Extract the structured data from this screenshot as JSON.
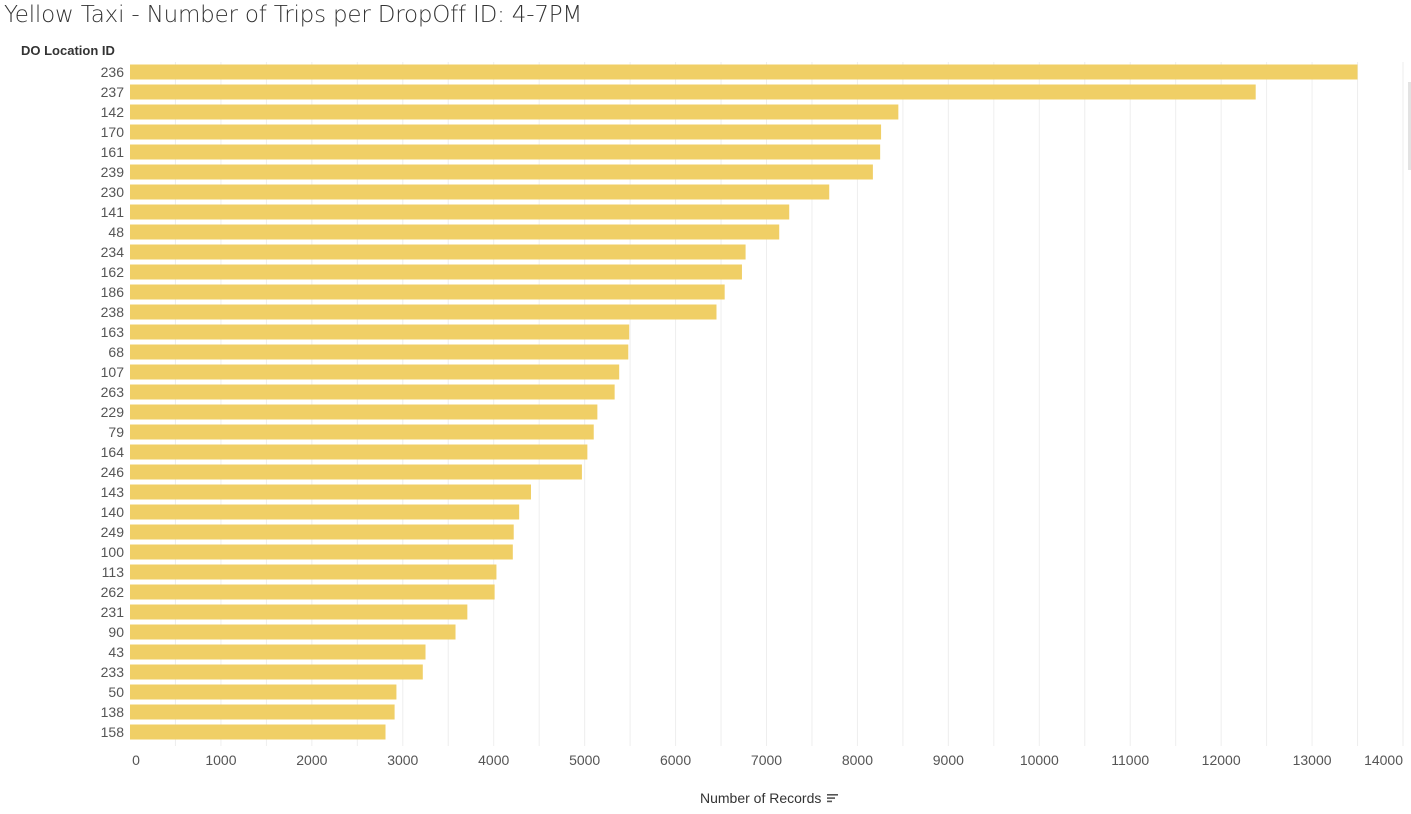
{
  "title": "Yellow Taxi - Number of Trips per DropOff ID: 4-7PM",
  "chart_data": {
    "type": "bar",
    "orientation": "horizontal",
    "title": "Yellow Taxi - Number of Trips per DropOff ID: 4-7PM",
    "ylabel": "DO Location ID",
    "xlabel": "Number of Records",
    "categories": [
      "236",
      "237",
      "142",
      "170",
      "161",
      "239",
      "230",
      "141",
      "48",
      "234",
      "162",
      "186",
      "238",
      "163",
      "68",
      "107",
      "263",
      "229",
      "79",
      "164",
      "246",
      "143",
      "140",
      "249",
      "100",
      "113",
      "262",
      "231",
      "90",
      "43",
      "233",
      "50",
      "138",
      "158"
    ],
    "values": [
      13500,
      12380,
      8450,
      8260,
      8250,
      8170,
      7690,
      7250,
      7140,
      6770,
      6730,
      6540,
      6450,
      5490,
      5480,
      5380,
      5330,
      5140,
      5100,
      5030,
      4970,
      4410,
      4280,
      4220,
      4210,
      4030,
      4010,
      3710,
      3580,
      3250,
      3220,
      2930,
      2910,
      2810
    ],
    "xlim": [
      0,
      14000
    ],
    "xticks": [
      0,
      1000,
      2000,
      3000,
      4000,
      5000,
      6000,
      7000,
      8000,
      9000,
      10000,
      11000,
      12000,
      13000,
      14000
    ],
    "grid": "vertical",
    "bar_color": "#f0cf66",
    "sorted": "descending"
  }
}
